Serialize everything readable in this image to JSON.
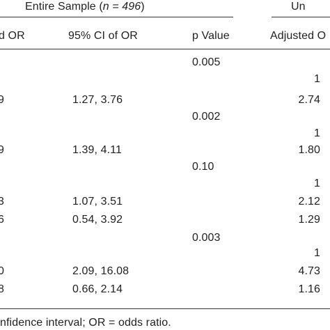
{
  "header": {
    "group_1_prefix": "Entire Sample (",
    "group_1_n": "n = 496",
    "group_1_suffix": ")",
    "group_2": "Un",
    "col_or": "d OR",
    "col_ci": "95% CI of OR",
    "col_p": "p Value",
    "col_aor2": "Adjusted O"
  },
  "rows": [
    {
      "or": "",
      "ci": "",
      "p": "0.005",
      "aor2": ""
    },
    {
      "or": "",
      "ci": "",
      "p": "",
      "aor2": "1"
    },
    {
      "or": "9",
      "ci": "1.27, 3.76",
      "p": "",
      "aor2": "2.74"
    },
    {
      "or": "",
      "ci": "",
      "p": "0.002",
      "aor2": ""
    },
    {
      "or": "",
      "ci": "",
      "p": "",
      "aor2": "1"
    },
    {
      "or": "9",
      "ci": "1.39, 4.11",
      "p": "",
      "aor2": "1.80"
    },
    {
      "or": "",
      "ci": "",
      "p": "0.10",
      "aor2": ""
    },
    {
      "or": "",
      "ci": "",
      "p": "",
      "aor2": "1"
    },
    {
      "or": "3",
      "ci": "1.07, 3.51",
      "p": "",
      "aor2": "2.12"
    },
    {
      "or": "6",
      "ci": "0.54, 3.92",
      "p": "",
      "aor2": "1.29"
    },
    {
      "or": "",
      "ci": "",
      "p": "0.003",
      "aor2": ""
    },
    {
      "or": "",
      "ci": "",
      "p": "",
      "aor2": "1"
    },
    {
      "or": "0",
      "ci": "2.09, 16.08",
      "p": "",
      "aor2": "4.73"
    },
    {
      "or": "8",
      "ci": "0.66, 2.14",
      "p": "",
      "aor2": "1.16"
    }
  ],
  "footnote": "nfidence interval; OR = odds ratio."
}
